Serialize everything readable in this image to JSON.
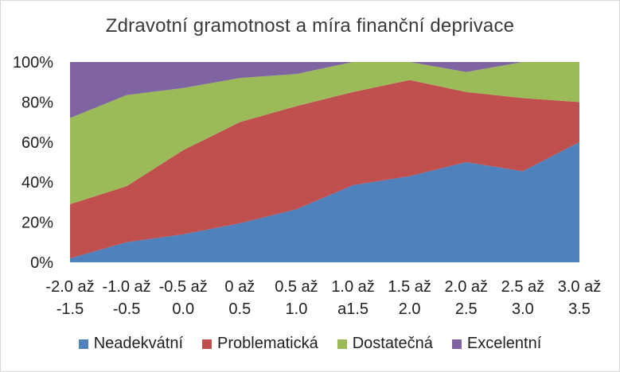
{
  "chart_data": {
    "type": "area",
    "stacked": true,
    "percent": true,
    "title": "Zdravotní gramotnost a míra finanční deprivace",
    "xlabel": "",
    "ylabel": "",
    "ylim": [
      0,
      100
    ],
    "y_ticks": [
      "0%",
      "20%",
      "40%",
      "60%",
      "80%",
      "100%"
    ],
    "categories": [
      [
        "-2.0 až",
        "-1.5"
      ],
      [
        "-1.0 až",
        "-0.5"
      ],
      [
        "-0.5 až",
        "0.0"
      ],
      [
        "0 až",
        "0.5"
      ],
      [
        "0.5 až",
        "1.0"
      ],
      [
        "1.0 až",
        "a1.5"
      ],
      [
        "1.5 až",
        "2.0"
      ],
      [
        "2.0 až",
        "2.5"
      ],
      [
        "2.5 až",
        "3.0"
      ],
      [
        "3.0 až",
        "3.5"
      ]
    ],
    "series": [
      {
        "name": "Neadekvátní",
        "color": "#4f81bd",
        "values": [
          2,
          10,
          14,
          19.5,
          26.5,
          38.5,
          43,
          50,
          45.5,
          60
        ]
      },
      {
        "name": "Problematická",
        "color": "#c0504d",
        "values": [
          27,
          28,
          42,
          50.5,
          51.5,
          46.5,
          48,
          35,
          36.5,
          20
        ]
      },
      {
        "name": "Dostatečná",
        "color": "#9bbb59",
        "values": [
          43,
          45.5,
          31,
          22,
          16,
          15,
          9,
          10,
          18,
          20
        ]
      },
      {
        "name": "Excelentní",
        "color": "#8064a2",
        "values": [
          28,
          16.5,
          13,
          8,
          6,
          0,
          0,
          5,
          0,
          0
        ]
      }
    ],
    "grid": true,
    "legend_position": "bottom"
  }
}
